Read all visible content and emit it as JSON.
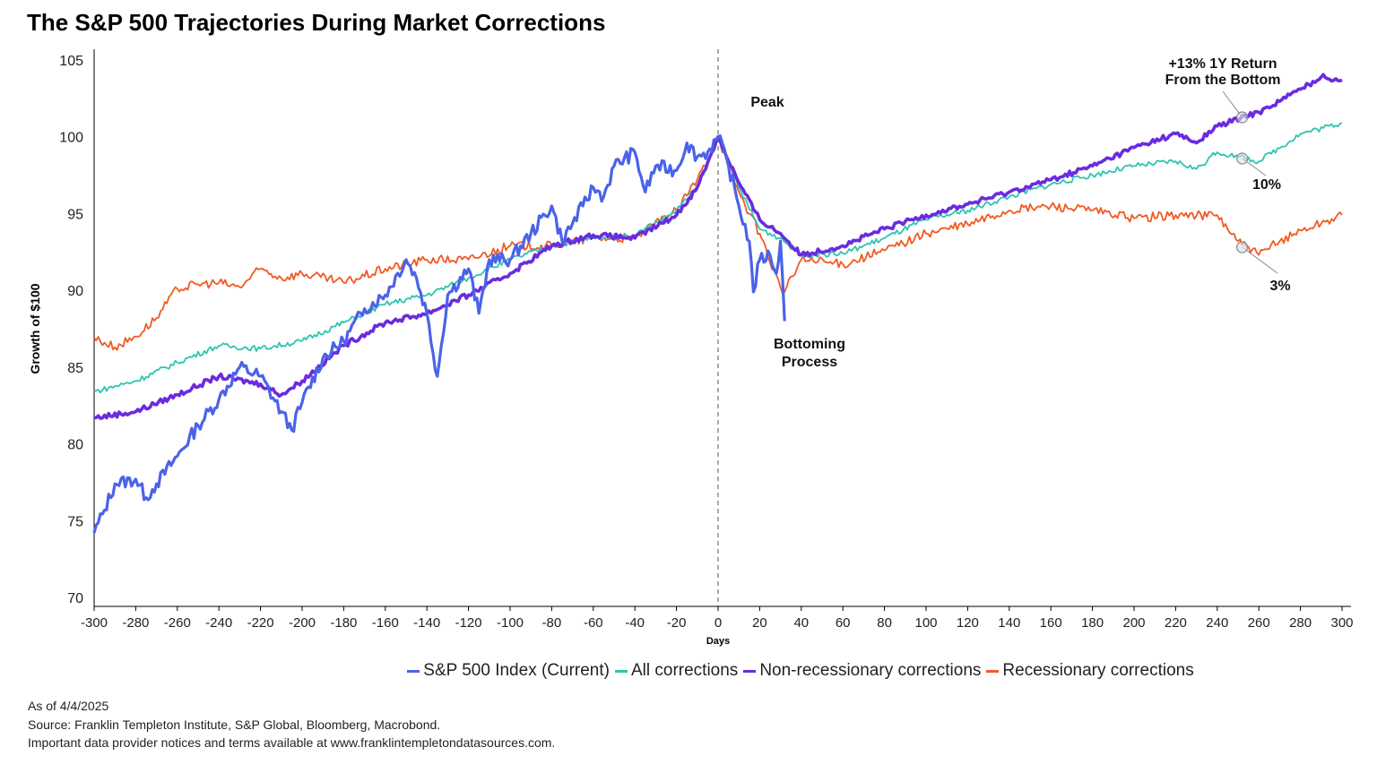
{
  "chart_data": {
    "type": "line",
    "title": "The S&P 500 Trajectories During Market Corrections",
    "xlabel": "Days",
    "ylabel": "Growth of $100",
    "xlim": [
      -300,
      300
    ],
    "ylim": [
      70,
      105
    ],
    "xticks": [
      -300,
      -280,
      -260,
      -240,
      -220,
      -200,
      -180,
      -160,
      -140,
      -120,
      -100,
      -80,
      -60,
      -40,
      -20,
      0,
      20,
      40,
      60,
      80,
      100,
      120,
      140,
      160,
      180,
      200,
      220,
      240,
      260,
      280,
      300
    ],
    "yticks": [
      70,
      75,
      80,
      85,
      90,
      95,
      100,
      105
    ],
    "grid": false,
    "legend_position": "bottom",
    "series": [
      {
        "name": "S&P 500 Index (Current)",
        "color": "#4a63e8",
        "x": [
          -300,
          -295,
          -290,
          -280,
          -275,
          -270,
          -260,
          -250,
          -240,
          -230,
          -220,
          -210,
          -205,
          -200,
          -190,
          -180,
          -170,
          -160,
          -150,
          -145,
          -140,
          -135,
          -130,
          -120,
          -115,
          -110,
          -100,
          -90,
          -80,
          -75,
          -65,
          -60,
          -55,
          -50,
          -40,
          -35,
          -30,
          -20,
          -15,
          -10,
          -5,
          0,
          5,
          10,
          15,
          17,
          20,
          25,
          28,
          30,
          32
        ],
        "y": [
          74.2,
          75.7,
          77.4,
          77.7,
          76.5,
          77.4,
          79.2,
          81.2,
          82.9,
          85.0,
          84.4,
          82.1,
          80.9,
          82.7,
          85.6,
          86.7,
          88.8,
          89.7,
          92.0,
          90.8,
          88.5,
          84.4,
          89.7,
          91.4,
          88.5,
          92.0,
          92.0,
          93.7,
          95.5,
          93.2,
          95.5,
          96.7,
          96.1,
          98.1,
          99.0,
          96.4,
          98.1,
          97.8,
          99.6,
          98.7,
          99.0,
          100,
          98.1,
          95.5,
          93.2,
          89.9,
          92.0,
          92.3,
          91.1,
          93.2,
          88.0
        ]
      },
      {
        "name": "All corrections",
        "color": "#2ec4b0",
        "x": [
          -300,
          -280,
          -260,
          -240,
          -220,
          -200,
          -180,
          -160,
          -140,
          -120,
          -100,
          -80,
          -60,
          -40,
          -20,
          -10,
          0,
          10,
          20,
          30,
          40,
          60,
          80,
          100,
          120,
          140,
          160,
          180,
          200,
          220,
          230,
          240,
          250,
          260,
          280,
          300
        ],
        "y": [
          83.4,
          84.1,
          85.3,
          86.4,
          86.2,
          86.7,
          87.9,
          89.1,
          89.7,
          90.8,
          92.0,
          92.9,
          93.4,
          93.6,
          95.2,
          96.7,
          100,
          96.7,
          94.0,
          93.4,
          92.3,
          92.4,
          93.4,
          94.6,
          95.2,
          96.1,
          96.9,
          97.5,
          98.1,
          98.4,
          97.9,
          99.0,
          98.7,
          98.4,
          100.2,
          100.9
        ]
      },
      {
        "name": "Non-recessionary corrections",
        "color": "#6a2be0",
        "x": [
          -300,
          -280,
          -260,
          -240,
          -220,
          -210,
          -200,
          -180,
          -160,
          -140,
          -120,
          -100,
          -80,
          -60,
          -40,
          -20,
          -10,
          0,
          10,
          20,
          30,
          40,
          60,
          80,
          100,
          120,
          140,
          160,
          180,
          200,
          220,
          230,
          240,
          260,
          280,
          290,
          300
        ],
        "y": [
          81.7,
          82.1,
          83.2,
          84.4,
          83.9,
          83.2,
          84.1,
          86.4,
          87.9,
          88.5,
          89.7,
          91.1,
          92.9,
          93.6,
          93.4,
          94.9,
          96.7,
          100,
          97.0,
          94.6,
          93.7,
          92.3,
          92.9,
          94.0,
          94.9,
          95.6,
          96.4,
          97.2,
          98.1,
          99.3,
          100.2,
          99.6,
          100.7,
          101.6,
          103.1,
          103.9,
          103.7
        ]
      },
      {
        "name": "Recessionary corrections",
        "color": "#f05a22",
        "x": [
          -300,
          -290,
          -280,
          -270,
          -260,
          -250,
          -240,
          -230,
          -220,
          -210,
          -200,
          -180,
          -160,
          -140,
          -120,
          -100,
          -80,
          -60,
          -40,
          -20,
          -10,
          0,
          10,
          20,
          30,
          32,
          40,
          60,
          80,
          100,
          120,
          140,
          160,
          180,
          200,
          220,
          240,
          250,
          260,
          270,
          280,
          300
        ],
        "y": [
          86.9,
          86.3,
          87.0,
          88.2,
          90.1,
          90.4,
          90.5,
          90.2,
          91.4,
          90.8,
          91.1,
          90.5,
          91.4,
          92.0,
          92.0,
          92.9,
          92.9,
          93.4,
          93.4,
          95.2,
          97.2,
          100,
          96.4,
          93.7,
          90.2,
          89.9,
          92.0,
          91.7,
          92.6,
          93.7,
          94.3,
          95.2,
          95.5,
          95.2,
          94.7,
          94.9,
          94.9,
          93.2,
          92.3,
          93.2,
          93.9,
          94.9
        ]
      }
    ],
    "annotations": [
      {
        "text": "Peak",
        "x": 0
      },
      {
        "text": [
          "Bottoming",
          "Process"
        ],
        "x": 32
      },
      {
        "text": [
          "+13% 1Y Return",
          "From the Bottom"
        ],
        "x": 252
      },
      {
        "text": "10%",
        "x": 252
      },
      {
        "text": "3%",
        "x": 252
      }
    ]
  },
  "footer": {
    "date": "As of 4/4/2025",
    "source": "Source: Franklin Templeton Institute, S&P Global, Bloomberg, Macrobond.",
    "notice": "Important data provider notices and terms available at www.franklintempletondatasources.com."
  }
}
